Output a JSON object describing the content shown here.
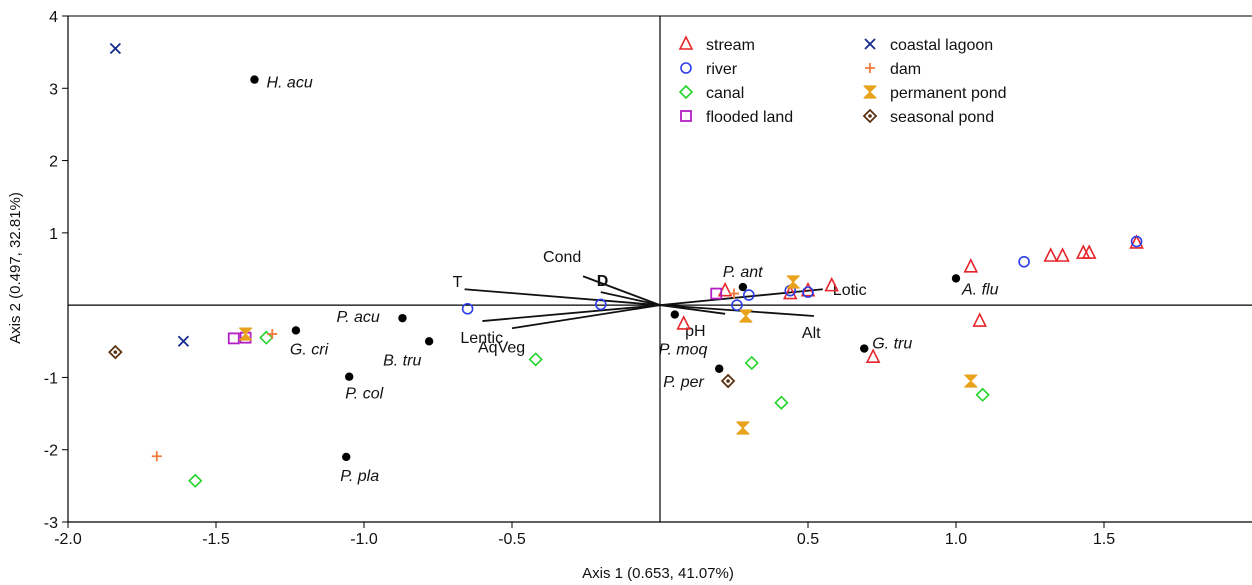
{
  "chart_data": {
    "type": "scatter",
    "xlabel": "Axis 1 (0.653, 41.07%)",
    "ylabel": "Axis 2 (0.497, 32.81%)",
    "xlim": [
      -2.0,
      2.0
    ],
    "ylim": [
      -3.0,
      4.0
    ],
    "xticks": [
      -2.0,
      -1.5,
      -1.0,
      -0.5,
      0.5,
      1.0,
      1.5
    ],
    "xtick_labels": [
      "-2.0",
      "-1.5",
      "-1.0",
      "-0.5",
      "0.5",
      "1.0",
      "1.5"
    ],
    "yticks": [
      -3,
      -2,
      -1,
      1,
      2,
      3,
      4
    ],
    "ytick_labels": [
      "-3",
      "-2",
      "-1",
      "1",
      "2",
      "3",
      "4"
    ],
    "grid": false,
    "reference_lines": {
      "x": 0,
      "y": 0
    },
    "legend_position": "top-right",
    "series": [
      {
        "name": "stream",
        "marker": "triangle",
        "color": "#e8252a",
        "points": [
          [
            0.22,
            0.2
          ],
          [
            0.08,
            -0.26
          ],
          [
            0.44,
            0.16
          ],
          [
            0.5,
            0.2
          ],
          [
            0.58,
            0.27
          ],
          [
            0.72,
            -0.72
          ],
          [
            1.05,
            0.53
          ],
          [
            1.08,
            -0.22
          ],
          [
            1.32,
            0.68
          ],
          [
            1.36,
            0.68
          ],
          [
            1.43,
            0.72
          ],
          [
            1.45,
            0.72
          ],
          [
            1.61,
            0.86
          ]
        ]
      },
      {
        "name": "river",
        "marker": "circle",
        "color": "#2a3de8",
        "points": [
          [
            -0.65,
            -0.05
          ],
          [
            -0.2,
            0.01
          ],
          [
            0.26,
            0.0
          ],
          [
            0.3,
            0.14
          ],
          [
            0.44,
            0.2
          ],
          [
            0.5,
            0.18
          ],
          [
            1.23,
            0.6
          ],
          [
            1.61,
            0.88
          ]
        ]
      },
      {
        "name": "canal",
        "marker": "diamond",
        "color": "#22d42a",
        "points": [
          [
            -1.33,
            -0.45
          ],
          [
            -1.57,
            -2.43
          ],
          [
            -0.42,
            -0.75
          ],
          [
            0.31,
            -0.8
          ],
          [
            0.41,
            -1.35
          ],
          [
            1.09,
            -1.24
          ]
        ]
      },
      {
        "name": "flooded land",
        "marker": "square",
        "color": "#b21fc4",
        "points": [
          [
            -1.44,
            -0.46
          ],
          [
            -1.4,
            -0.45
          ],
          [
            0.19,
            0.16
          ]
        ]
      },
      {
        "name": "coastal lagoon",
        "marker": "x",
        "color": "#142a8c",
        "points": [
          [
            -1.84,
            3.55
          ],
          [
            -1.61,
            -0.5
          ]
        ]
      },
      {
        "name": "dam",
        "marker": "plus",
        "color": "#f07b3c",
        "points": [
          [
            -1.31,
            -0.4
          ],
          [
            -1.7,
            -2.09
          ],
          [
            0.25,
            0.16
          ]
        ]
      },
      {
        "name": "permanent pond",
        "marker": "hourglass",
        "color": "#e8a21c",
        "points": [
          [
            -1.4,
            -0.4
          ],
          [
            0.29,
            -0.15
          ],
          [
            0.45,
            0.32
          ],
          [
            0.28,
            -1.7
          ],
          [
            1.05,
            -1.05
          ]
        ]
      },
      {
        "name": "seasonal pond",
        "marker": "diamond-dot",
        "color": "#5a3211",
        "points": [
          [
            -1.84,
            -0.65
          ],
          [
            0.23,
            -1.05
          ]
        ]
      }
    ],
    "species": [
      {
        "label": "H. acu",
        "x": -1.37,
        "y": 3.12
      },
      {
        "label": "P. acu",
        "x": -0.87,
        "y": -0.18
      },
      {
        "label": "G. cri",
        "x": -1.23,
        "y": -0.35
      },
      {
        "label": "B. tru",
        "x": -0.78,
        "y": -0.5
      },
      {
        "label": "P. col",
        "x": -1.05,
        "y": -0.99
      },
      {
        "label": "P. pla",
        "x": -1.06,
        "y": -2.1
      },
      {
        "label": "P. ant",
        "x": 0.28,
        "y": 0.25
      },
      {
        "label": "A. flu",
        "x": 1.0,
        "y": 0.37
      },
      {
        "label": "P. moq",
        "x": 0.05,
        "y": -0.13
      },
      {
        "label": "P. per",
        "x": 0.2,
        "y": -0.88
      },
      {
        "label": "G. tru",
        "x": 0.69,
        "y": -0.6
      }
    ],
    "env_vectors": [
      {
        "label": "Cond",
        "x": -0.26,
        "y": 0.4
      },
      {
        "label": "D",
        "x": -0.2,
        "y": 0.18
      },
      {
        "label": "T",
        "x": -0.66,
        "y": 0.22
      },
      {
        "label": "Lentic",
        "x": -0.6,
        "y": -0.22
      },
      {
        "label": "AqVeg",
        "x": -0.5,
        "y": -0.32
      },
      {
        "label": "Lotic",
        "x": 0.55,
        "y": 0.22
      },
      {
        "label": "pH",
        "x": 0.22,
        "y": -0.12
      },
      {
        "label": "Alt",
        "x": 0.52,
        "y": -0.15
      }
    ]
  }
}
